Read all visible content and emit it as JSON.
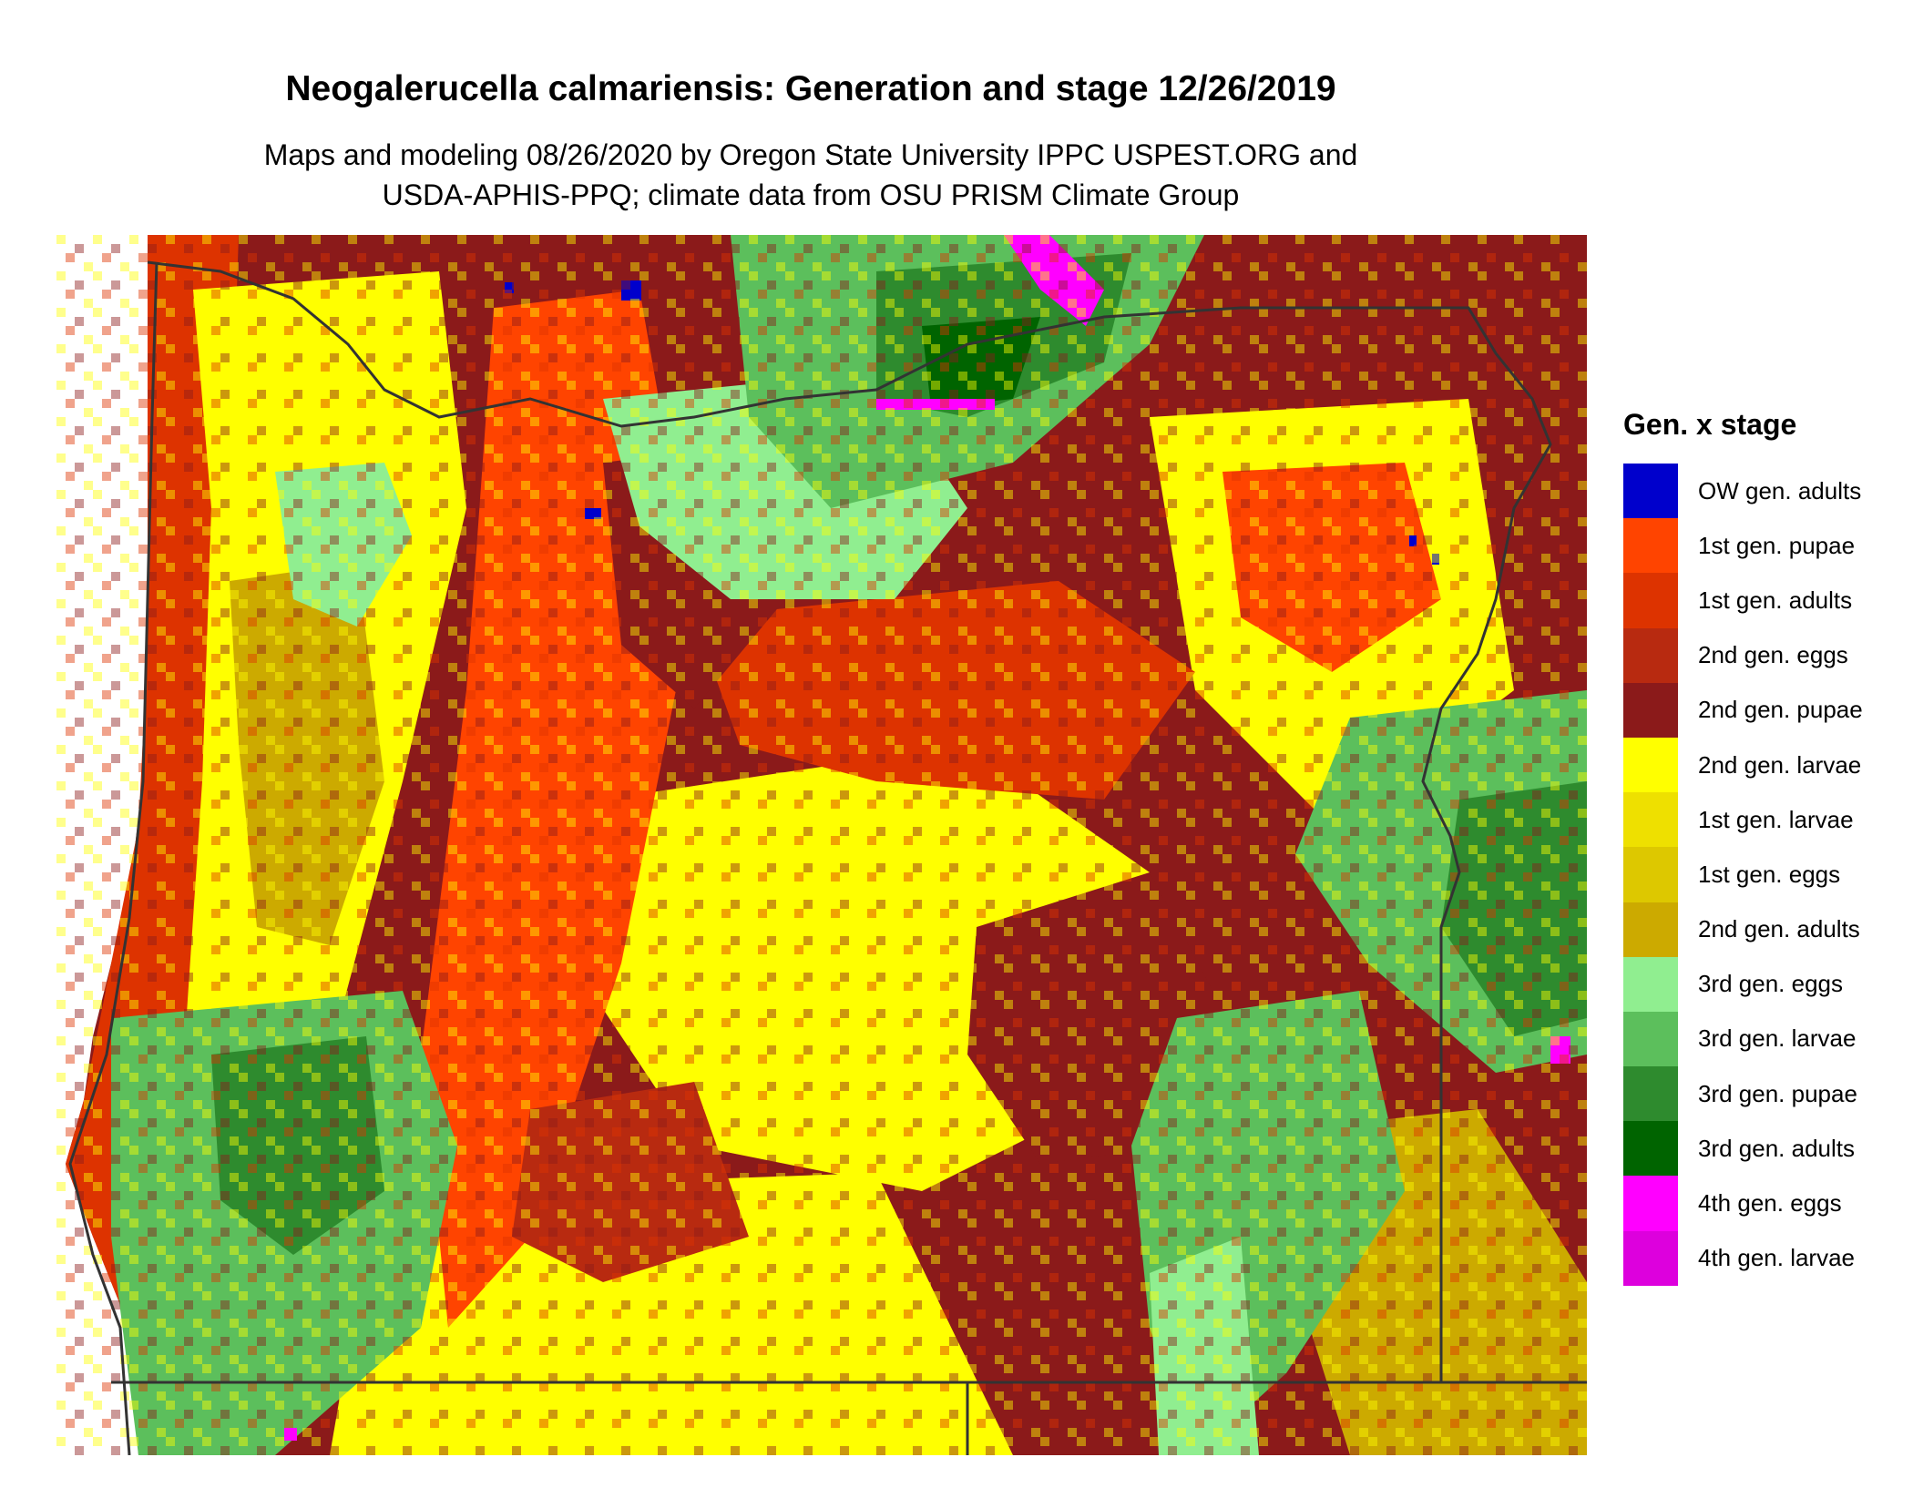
{
  "map": {
    "title": "Neogalerucella calmariensis: Generation and stage 12/26/2019",
    "subtitle_line1": "Maps and modeling 08/26/2020 by Oregon State University IPPC USPEST.ORG and",
    "subtitle_line2": "USDA-APHIS-PPQ; climate data from OSU PRISM Climate Group"
  },
  "legend": {
    "title": "Gen. x stage",
    "items": [
      {
        "label": "OW gen. adults",
        "color": "#0000cc"
      },
      {
        "label": "1st gen. pupae",
        "color": "#ff4400"
      },
      {
        "label": "1st gen. adults",
        "color": "#dd3300"
      },
      {
        "label": "2nd gen. eggs",
        "color": "#b82a10"
      },
      {
        "label": "2nd gen. pupae",
        "color": "#8b1a1a"
      },
      {
        "label": "2nd gen. larvae",
        "color": "#ffff00"
      },
      {
        "label": "1st gen. larvae",
        "color": "#eee000"
      },
      {
        "label": "1st gen. eggs",
        "color": "#ddc800"
      },
      {
        "label": "2nd gen. adults",
        "color": "#ccaa00"
      },
      {
        "label": "3rd gen. eggs",
        "color": "#90ee90"
      },
      {
        "label": "3rd gen. larvae",
        "color": "#5cbf5c"
      },
      {
        "label": "3rd gen. pupae",
        "color": "#2e8b2e"
      },
      {
        "label": "3rd gen. adults",
        "color": "#006400"
      },
      {
        "label": "4th gen. eggs",
        "color": "#ff00ff"
      },
      {
        "label": "4th gen. larvae",
        "color": "#dd00dd"
      }
    ]
  }
}
